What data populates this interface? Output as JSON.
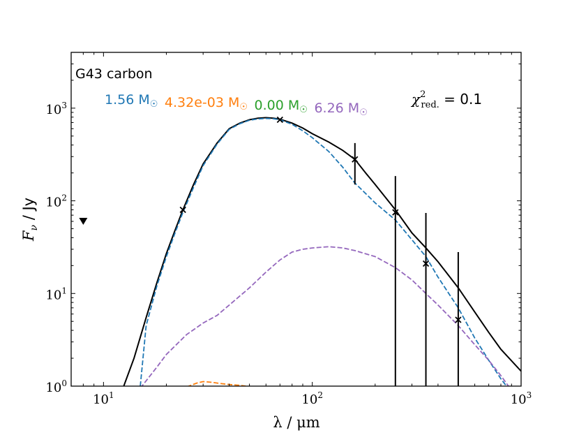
{
  "chart_data": {
    "type": "line",
    "title": "G43 carbon",
    "xlabel": "λ / μm",
    "ylabel_prefix": "F",
    "ylabel_sub": "ν",
    "ylabel_suffix": " / Jy",
    "xscale": "log",
    "yscale": "log",
    "xlim": [
      7,
      1000
    ],
    "ylim": [
      1,
      4000
    ],
    "x_ticks": [
      {
        "value": 10,
        "base": "10",
        "exp": "1"
      },
      {
        "value": 100,
        "base": "10",
        "exp": "2"
      },
      {
        "value": 1000,
        "base": "10",
        "exp": "3"
      }
    ],
    "y_ticks": [
      {
        "value": 1,
        "base": "10",
        "exp": "0"
      },
      {
        "value": 10,
        "base": "10",
        "exp": "1"
      },
      {
        "value": 100,
        "base": "10",
        "exp": "2"
      },
      {
        "value": 1000,
        "base": "10",
        "exp": "3"
      }
    ],
    "annotations": [
      {
        "name": "mass-blue",
        "value": "1.56 M",
        "symbol": "☉",
        "color": "#1f77b4"
      },
      {
        "name": "mass-orange",
        "value": "4.32e-03 M",
        "symbol": "☉",
        "color": "#ff7f0e"
      },
      {
        "name": "mass-green",
        "value": "0.00 M",
        "symbol": "☉",
        "color": "#2ca02c"
      },
      {
        "name": "mass-purple",
        "value": "6.26 M",
        "symbol": "☉",
        "color": "#9467bd"
      }
    ],
    "chi2": {
      "symbol": "χ",
      "sup": "2",
      "sub": "red.",
      "value": " = 0.1"
    },
    "series": [
      {
        "name": "total",
        "color": "#000000",
        "style": "solid",
        "x": [
          12.5,
          14,
          16,
          18,
          20,
          22,
          24,
          27,
          30,
          35,
          40,
          45,
          50,
          55,
          60,
          65,
          70,
          80,
          90,
          100,
          120,
          140,
          160,
          180,
          200,
          250,
          300,
          350,
          400,
          500,
          600,
          700,
          800,
          1000
        ],
        "y": [
          1.0,
          2.0,
          5.5,
          13,
          27,
          48,
          80,
          150,
          250,
          420,
          600,
          690,
          750,
          780,
          790,
          780,
          760,
          690,
          610,
          530,
          430,
          350,
          280,
          200,
          150,
          80,
          45,
          31,
          22,
          11.5,
          6.3,
          3.8,
          2.5,
          1.45
        ]
      },
      {
        "name": "warm-carbon",
        "color": "#1f77b4",
        "style": "dashed",
        "x": [
          15,
          16,
          18,
          20,
          22,
          24,
          27,
          30,
          35,
          40,
          45,
          50,
          55,
          60,
          65,
          70,
          80,
          90,
          100,
          120,
          140,
          160,
          180,
          200,
          250,
          300,
          350,
          400,
          500,
          600,
          700,
          800,
          900
        ],
        "y": [
          1.0,
          4.5,
          12,
          25,
          45,
          75,
          140,
          240,
          410,
          590,
          680,
          740,
          765,
          775,
          770,
          750,
          670,
          570,
          480,
          340,
          230,
          155,
          120,
          95,
          62,
          38,
          25,
          15,
          7.0,
          3.3,
          1.9,
          1.2,
          0.85
        ]
      },
      {
        "name": "hot-component",
        "color": "#ff7f0e",
        "style": "dashed",
        "x": [
          25,
          28,
          30,
          33,
          36,
          40,
          45,
          48
        ],
        "y": [
          0.98,
          1.08,
          1.12,
          1.1,
          1.07,
          1.04,
          1.02,
          1.0
        ]
      },
      {
        "name": "cold-dust",
        "color": "#9467bd",
        "style": "dashed",
        "x": [
          15,
          18,
          20,
          25,
          30,
          35,
          40,
          50,
          60,
          70,
          80,
          90,
          100,
          120,
          140,
          160,
          200,
          250,
          300,
          350,
          400,
          500,
          600,
          700,
          800,
          900
        ],
        "y": [
          0.95,
          1.6,
          2.2,
          3.6,
          4.8,
          5.8,
          7.5,
          11.5,
          17,
          23,
          28,
          30,
          31,
          32,
          31,
          29,
          25,
          19,
          14,
          10,
          7.5,
          4.5,
          2.8,
          1.9,
          1.3,
          0.9
        ]
      }
    ],
    "data_points": [
      {
        "x": 24,
        "y": 80,
        "err": [
          0,
          0
        ]
      },
      {
        "x": 70,
        "y": 750,
        "err": [
          0,
          0
        ]
      },
      {
        "x": 160,
        "y": 280,
        "err": [
          150,
          420
        ]
      },
      {
        "x": 250,
        "y": 75,
        "err": [
          0.5,
          185
        ]
      },
      {
        "x": 350,
        "y": 21,
        "err": [
          0.5,
          74
        ]
      },
      {
        "x": 500,
        "y": 5.2,
        "err": [
          0.5,
          28
        ]
      }
    ],
    "upper_limits": [
      {
        "x": 8,
        "y": 60
      }
    ]
  }
}
